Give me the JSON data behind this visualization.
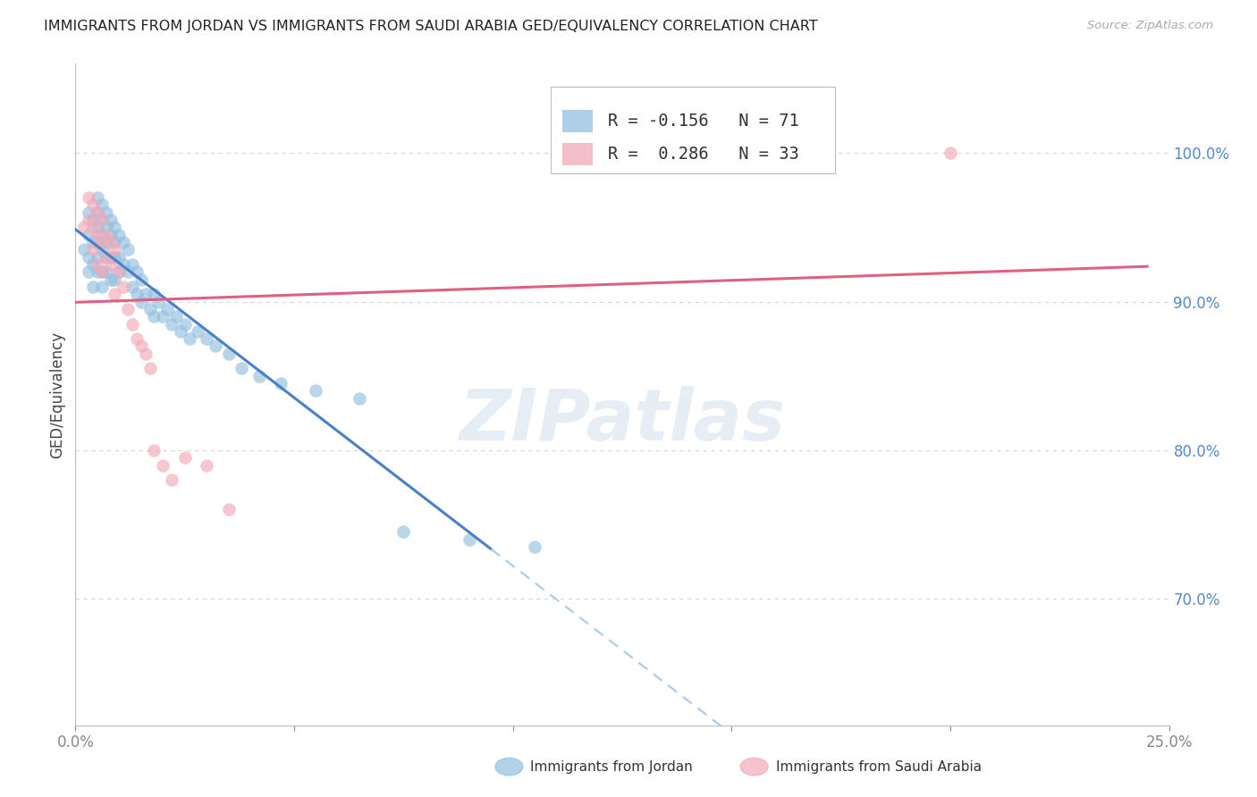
{
  "title": "IMMIGRANTS FROM JORDAN VS IMMIGRANTS FROM SAUDI ARABIA GED/EQUIVALENCY CORRELATION CHART",
  "source": "Source: ZipAtlas.com",
  "ylabel": "GED/Equivalency",
  "ylabel_right_labels": [
    "100.0%",
    "90.0%",
    "80.0%",
    "70.0%"
  ],
  "ylabel_right_values": [
    1.0,
    0.9,
    0.8,
    0.7
  ],
  "xlim": [
    0.0,
    0.25
  ],
  "ylim": [
    0.615,
    1.06
  ],
  "jordan_color": "#92bfe0",
  "saudi_color": "#f2aab8",
  "jordan_line_color": "#4a80c4",
  "saudi_line_color": "#e06080",
  "jordan_line_dash_color": "#aac8e8",
  "watermark": "ZIPatlas",
  "background_color": "#ffffff",
  "grid_color": "#cccccc",
  "legend_r1": "R = -0.156",
  "legend_n1": "N = 71",
  "legend_r2": "R =  0.286",
  "legend_n2": "N = 33",
  "jordan_x": [
    0.002,
    0.003,
    0.003,
    0.003,
    0.003,
    0.004,
    0.004,
    0.004,
    0.004,
    0.005,
    0.005,
    0.005,
    0.005,
    0.005,
    0.005,
    0.006,
    0.006,
    0.006,
    0.006,
    0.006,
    0.006,
    0.007,
    0.007,
    0.007,
    0.007,
    0.007,
    0.008,
    0.008,
    0.008,
    0.008,
    0.009,
    0.009,
    0.009,
    0.009,
    0.01,
    0.01,
    0.01,
    0.011,
    0.011,
    0.012,
    0.012,
    0.013,
    0.013,
    0.014,
    0.014,
    0.015,
    0.015,
    0.016,
    0.017,
    0.018,
    0.018,
    0.019,
    0.02,
    0.021,
    0.022,
    0.023,
    0.024,
    0.025,
    0.026,
    0.028,
    0.03,
    0.032,
    0.035,
    0.038,
    0.042,
    0.047,
    0.055,
    0.065,
    0.075,
    0.09,
    0.105
  ],
  "jordan_y": [
    0.935,
    0.96,
    0.945,
    0.93,
    0.92,
    0.955,
    0.94,
    0.925,
    0.91,
    0.97,
    0.96,
    0.95,
    0.94,
    0.93,
    0.92,
    0.965,
    0.955,
    0.945,
    0.935,
    0.92,
    0.91,
    0.96,
    0.95,
    0.94,
    0.93,
    0.92,
    0.955,
    0.945,
    0.93,
    0.915,
    0.95,
    0.94,
    0.93,
    0.915,
    0.945,
    0.93,
    0.92,
    0.94,
    0.925,
    0.935,
    0.92,
    0.925,
    0.91,
    0.92,
    0.905,
    0.915,
    0.9,
    0.905,
    0.895,
    0.905,
    0.89,
    0.9,
    0.89,
    0.895,
    0.885,
    0.89,
    0.88,
    0.885,
    0.875,
    0.88,
    0.875,
    0.87,
    0.865,
    0.855,
    0.85,
    0.845,
    0.84,
    0.835,
    0.745,
    0.74,
    0.735
  ],
  "saudi_x": [
    0.002,
    0.003,
    0.003,
    0.004,
    0.004,
    0.004,
    0.005,
    0.005,
    0.005,
    0.006,
    0.006,
    0.006,
    0.007,
    0.007,
    0.008,
    0.008,
    0.009,
    0.009,
    0.01,
    0.011,
    0.012,
    0.013,
    0.014,
    0.015,
    0.016,
    0.017,
    0.018,
    0.02,
    0.022,
    0.025,
    0.03,
    0.035,
    0.2
  ],
  "saudi_y": [
    0.95,
    0.97,
    0.955,
    0.965,
    0.95,
    0.935,
    0.96,
    0.945,
    0.925,
    0.955,
    0.94,
    0.92,
    0.945,
    0.93,
    0.94,
    0.925,
    0.935,
    0.905,
    0.92,
    0.91,
    0.895,
    0.885,
    0.875,
    0.87,
    0.865,
    0.855,
    0.8,
    0.79,
    0.78,
    0.795,
    0.79,
    0.76,
    1.0
  ]
}
